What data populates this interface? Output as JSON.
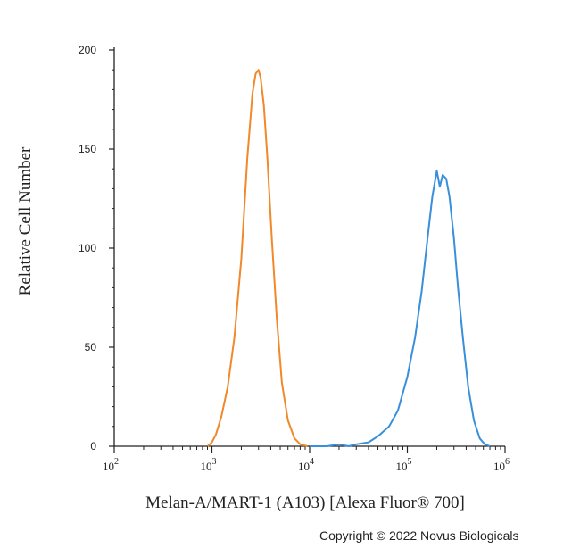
{
  "chart_data": {
    "type": "line",
    "title": "",
    "xlabel": "Melan-A/MART-1 (A103) [Alexa Fluor® 700]",
    "ylabel": "Relative Cell Number",
    "x_scale": "log",
    "xlim": [
      100,
      1000000
    ],
    "ylim": [
      0,
      200
    ],
    "yticks": [
      0,
      50,
      100,
      150,
      200
    ],
    "xticks": [
      {
        "base": "10",
        "exp": "2",
        "value": 100
      },
      {
        "base": "10",
        "exp": "3",
        "value": 1000
      },
      {
        "base": "10",
        "exp": "4",
        "value": 10000
      },
      {
        "base": "10",
        "exp": "5",
        "value": 100000
      },
      {
        "base": "10",
        "exp": "6",
        "value": 1000000
      }
    ],
    "grid": false,
    "legend": "none",
    "series": [
      {
        "color": "#f0892a",
        "x": [
          900,
          1000,
          1100,
          1250,
          1450,
          1700,
          2000,
          2300,
          2600,
          2800,
          3000,
          3150,
          3400,
          3700,
          4100,
          4600,
          5200,
          6000,
          7000,
          8000,
          9500
        ],
        "y": [
          0,
          2,
          6,
          15,
          30,
          55,
          95,
          145,
          178,
          188,
          190,
          186,
          172,
          145,
          105,
          65,
          32,
          13,
          4,
          1,
          0
        ]
      },
      {
        "color": "#3a8fdb",
        "x": [
          10000,
          15000,
          20000,
          25000,
          30000,
          40000,
          50000,
          65000,
          80000,
          100000,
          120000,
          140000,
          160000,
          180000,
          200000,
          215000,
          230000,
          250000,
          270000,
          300000,
          330000,
          370000,
          420000,
          480000,
          550000,
          620000,
          700000
        ],
        "y": [
          0,
          0,
          1,
          0,
          1,
          2,
          5,
          10,
          18,
          35,
          55,
          78,
          104,
          126,
          139,
          131,
          137,
          135,
          126,
          105,
          80,
          55,
          30,
          13,
          4,
          1,
          0
        ]
      }
    ]
  },
  "copyright": "Copyright © 2022 Novus Biologicals"
}
